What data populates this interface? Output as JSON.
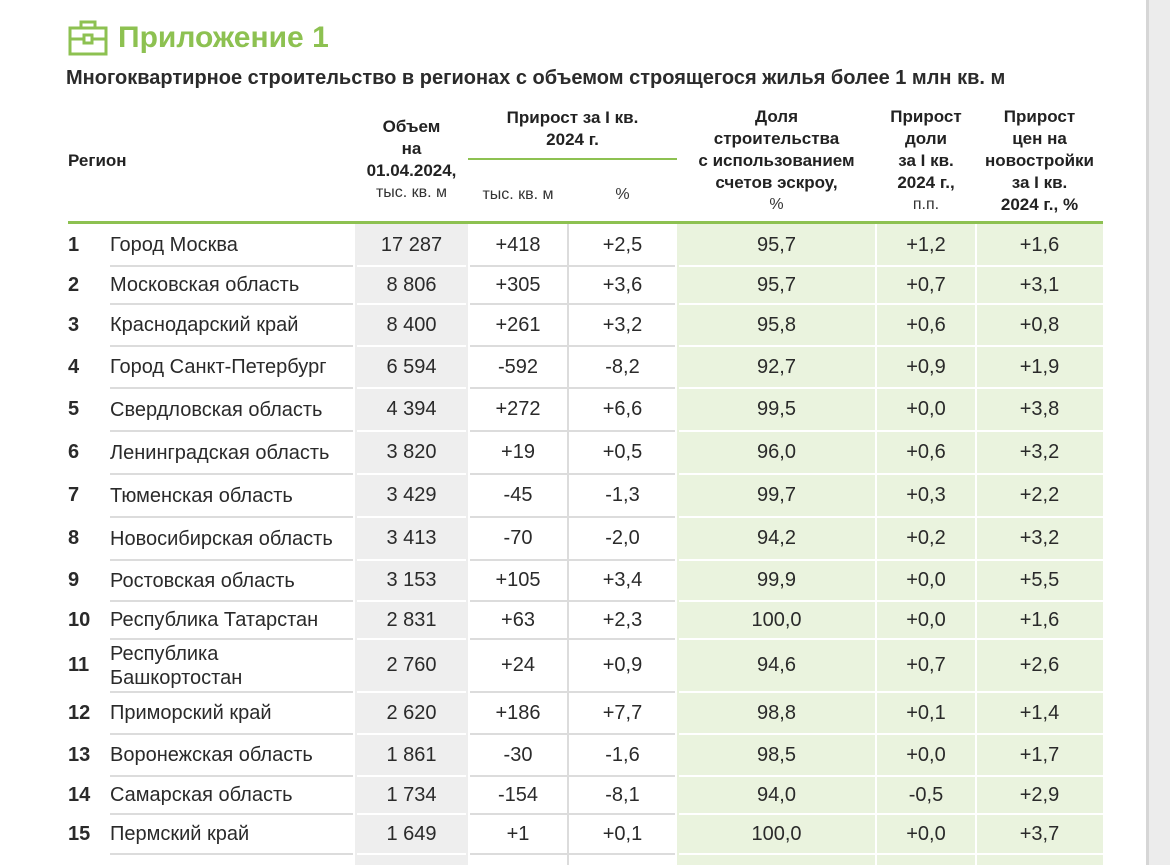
{
  "appendix_title": "Приложение 1",
  "subtitle": "Многоквартирное строительство в регионах с объемом строящегося жилья более 1 млн кв. м",
  "icon": "briefcase-icon",
  "colors": {
    "accent": "#8dc151",
    "green_bg": "#eaf3de",
    "gray_bg": "#eeeeee"
  },
  "headers": {
    "region": "Регион",
    "volume": {
      "l1": "Объем",
      "l2": "на",
      "l3": "01.04.2024,",
      "unit": "тыс. кв. м"
    },
    "growth": {
      "l1": "Прирост за I кв.",
      "l2": "2024 г.",
      "sub_volume": "тыс. кв. м",
      "sub_pct": "%"
    },
    "escrow": {
      "l1": "Доля",
      "l2": "строительства",
      "l3": "с использованием",
      "l4": "счетов эскроу,",
      "unit": "%"
    },
    "share_growth": {
      "l1": "Прирост",
      "l2": "доли",
      "l3": "за I кв.",
      "l4": "2024 г.,",
      "unit": "п.п."
    },
    "price_growth": {
      "l1": "Прирост",
      "l2": "цен на",
      "l3": "новостройки",
      "l4": "за I кв.",
      "l5": "2024 г., %"
    }
  },
  "rows": [
    {
      "n": "1",
      "region": "Город Москва",
      "volume": "17 287",
      "growth": "+418",
      "pct": "+2,5",
      "escrow": "95,7",
      "share": "+1,2",
      "price": "+1,6"
    },
    {
      "n": "2",
      "region": "Московская область",
      "volume": "8 806",
      "growth": "+305",
      "pct": "+3,6",
      "escrow": "95,7",
      "share": "+0,7",
      "price": "+3,1"
    },
    {
      "n": "3",
      "region": "Краснодарский край",
      "volume": "8 400",
      "growth": "+261",
      "pct": "+3,2",
      "escrow": "95,8",
      "share": "+0,6",
      "price": "+0,8"
    },
    {
      "n": "4",
      "region": "Город Санкт-Петербург",
      "volume": "6 594",
      "growth": "-592",
      "pct": "-8,2",
      "escrow": "92,7",
      "share": "+0,9",
      "price": "+1,9"
    },
    {
      "n": "5",
      "region": "Свердловская область",
      "volume": "4 394",
      "growth": "+272",
      "pct": "+6,6",
      "escrow": "99,5",
      "share": "+0,0",
      "price": "+3,8"
    },
    {
      "n": "6",
      "region": "Ленинградская область",
      "volume": "3 820",
      "growth": "+19",
      "pct": "+0,5",
      "escrow": "96,0",
      "share": "+0,6",
      "price": "+3,2"
    },
    {
      "n": "7",
      "region": "Тюменская область",
      "volume": "3 429",
      "growth": "-45",
      "pct": "-1,3",
      "escrow": "99,7",
      "share": "+0,3",
      "price": "+2,2"
    },
    {
      "n": "8",
      "region": "Новосибирская область",
      "volume": "3 413",
      "growth": "-70",
      "pct": "-2,0",
      "escrow": "94,2",
      "share": "+0,2",
      "price": "+3,2"
    },
    {
      "n": "9",
      "region": "Ростовская область",
      "volume": "3 153",
      "growth": "+105",
      "pct": "+3,4",
      "escrow": "99,9",
      "share": "+0,0",
      "price": "+5,5"
    },
    {
      "n": "10",
      "region": "Республика Татарстан",
      "volume": "2 831",
      "growth": "+63",
      "pct": "+2,3",
      "escrow": "100,0",
      "share": "+0,0",
      "price": "+1,6"
    },
    {
      "n": "11",
      "region": "Республика Башкортостан",
      "volume": "2 760",
      "growth": "+24",
      "pct": "+0,9",
      "escrow": "94,6",
      "share": "+0,7",
      "price": "+2,6"
    },
    {
      "n": "12",
      "region": "Приморский край",
      "volume": "2 620",
      "growth": "+186",
      "pct": "+7,7",
      "escrow": "98,8",
      "share": "+0,1",
      "price": "+1,4"
    },
    {
      "n": "13",
      "region": "Воронежская область",
      "volume": "1 861",
      "growth": "-30",
      "pct": "-1,6",
      "escrow": "98,5",
      "share": "+0,0",
      "price": "+1,7"
    },
    {
      "n": "14",
      "region": "Самарская область",
      "volume": "1 734",
      "growth": "-154",
      "pct": "-8,1",
      "escrow": "94,0",
      "share": "-0,5",
      "price": "+2,9"
    },
    {
      "n": "15",
      "region": "Пермский край",
      "volume": "1 649",
      "growth": "+1",
      "pct": "+0,1",
      "escrow": "100,0",
      "share": "+0,0",
      "price": "+3,7"
    }
  ]
}
